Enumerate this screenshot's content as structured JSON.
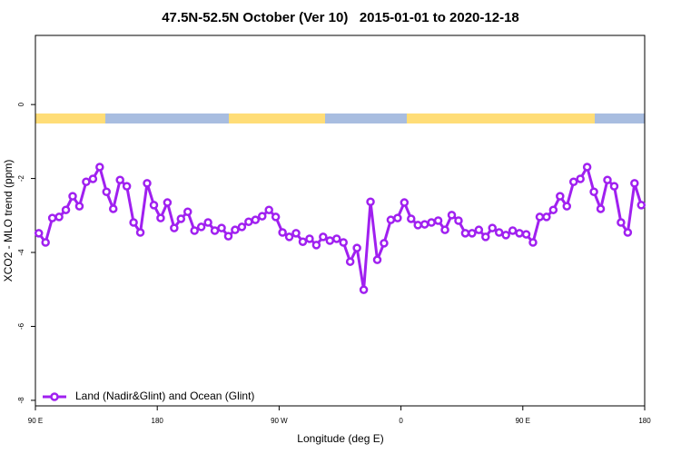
{
  "chart_data": {
    "type": "line",
    "title": "47.5N-52.5N October (Ver 10)   2015-01-01 to 2020-12-18",
    "xlabel": "Longitude (deg E)",
    "ylabel": "XCO2 - MLO trend (ppm)",
    "xlim": [
      90,
      540
    ],
    "ylim": [
      -8.15,
      1.87
    ],
    "xticks": [
      {
        "value": 90,
        "label": "90 E"
      },
      {
        "value": 180,
        "label": "180"
      },
      {
        "value": 270,
        "label": "90 W"
      },
      {
        "value": 360,
        "label": "0"
      },
      {
        "value": 450,
        "label": "90 E"
      },
      {
        "value": 540,
        "label": "180"
      }
    ],
    "yticks": [
      0,
      -2,
      -4,
      -6,
      -8
    ],
    "legend": "bottom-left",
    "x": [
      92.5,
      97.5,
      102.5,
      107.5,
      112.5,
      117.5,
      122.5,
      127.5,
      132.5,
      137.5,
      142.5,
      147.5,
      152.5,
      157.5,
      162.5,
      167.5,
      172.5,
      177.5,
      182.5,
      187.5,
      192.5,
      197.5,
      202.5,
      207.5,
      212.5,
      217.5,
      222.5,
      227.5,
      232.5,
      237.5,
      242.5,
      247.5,
      252.5,
      257.5,
      262.5,
      267.5,
      272.5,
      277.5,
      282.5,
      287.5,
      292.5,
      297.5,
      302.5,
      307.5,
      312.5,
      317.5,
      322.5,
      327.5,
      332.5,
      337.5,
      342.5,
      347.5,
      352.5,
      357.5,
      362.5,
      367.5,
      372.5,
      377.5,
      382.5,
      387.5,
      392.5,
      397.5,
      402.5,
      407.5,
      412.5,
      417.5,
      422.5,
      427.5,
      432.5,
      437.5,
      442.5,
      447.5,
      452.5,
      457.5,
      462.5,
      467.5,
      472.5,
      477.5,
      482.5,
      487.5,
      492.5,
      497.5,
      502.5,
      507.5,
      512.5,
      517.5,
      522.5,
      527.5,
      532.5,
      537.5
    ],
    "series": [
      {
        "name": "Land (Nadir&Glint) and Ocean (Glint)",
        "color": "#a020f0",
        "values": [
          -3.48,
          -3.73,
          -3.07,
          -3.04,
          -2.85,
          -2.48,
          -2.75,
          -2.09,
          -2.01,
          -1.69,
          -2.36,
          -2.82,
          -2.04,
          -2.21,
          -3.19,
          -3.46,
          -2.13,
          -2.72,
          -3.07,
          -2.65,
          -3.34,
          -3.09,
          -2.9,
          -3.41,
          -3.31,
          -3.19,
          -3.41,
          -3.34,
          -3.56,
          -3.39,
          -3.31,
          -3.17,
          -3.12,
          -3.02,
          -2.85,
          -3.04,
          -3.46,
          -3.58,
          -3.48,
          -3.71,
          -3.63,
          -3.8,
          -3.58,
          -3.68,
          -3.63,
          -3.73,
          -4.25,
          -3.88,
          -5.01,
          -2.63,
          -4.2,
          -3.75,
          -3.12,
          -3.07,
          -2.65,
          -3.09,
          -3.26,
          -3.24,
          -3.19,
          -3.14,
          -3.39,
          -2.99,
          -3.14,
          -3.48,
          -3.48,
          -3.39,
          -3.58,
          -3.34,
          -3.46,
          -3.53,
          -3.41,
          -3.48,
          -3.51,
          -3.73,
          -3.04,
          -3.04,
          -2.85,
          -2.48,
          -2.75,
          -2.09,
          -2.01,
          -1.69,
          -2.36,
          -2.82,
          -2.04,
          -2.21,
          -3.19,
          -3.46,
          -2.13,
          -2.72
        ]
      }
    ]
  }
}
